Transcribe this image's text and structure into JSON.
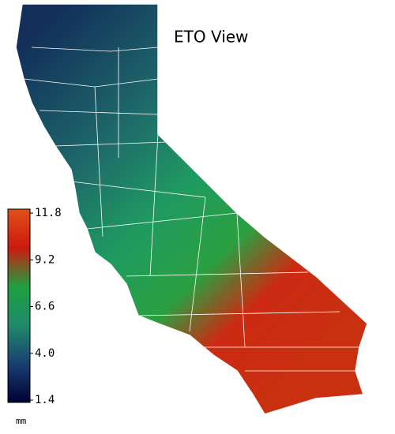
{
  "map": {
    "title": "ETO View",
    "colorbar": {
      "lim": [
        1.4,
        11.8
      ],
      "ticks": [
        1.4,
        {
          "value": 4,
          "label": "4.0"
        },
        6.6,
        9.2,
        11.8
      ],
      "unit": "mm",
      "colors": [
        "#000033",
        "#1a3f73",
        "#1f8a6a",
        "#1fa040",
        "#cc1a10",
        "#e0501a"
      ]
    }
  }
}
